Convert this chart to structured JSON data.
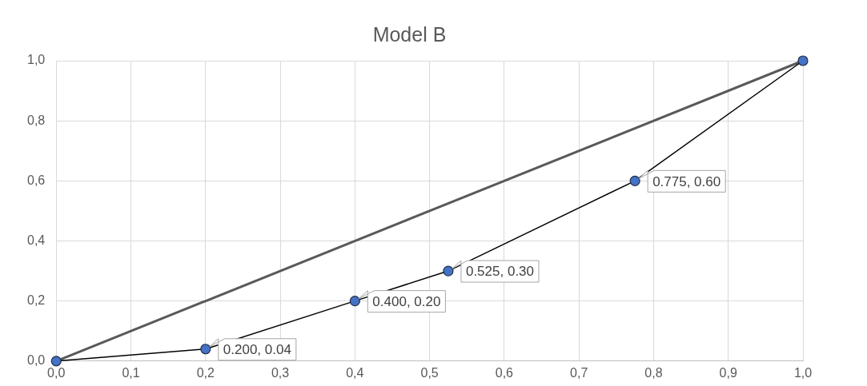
{
  "chart_data": {
    "type": "line",
    "title": "Model B",
    "xlim": [
      0,
      1
    ],
    "ylim": [
      0,
      1
    ],
    "xticks": [
      {
        "value": 0,
        "label": "0,0"
      },
      {
        "value": 0.1,
        "label": "0,1"
      },
      {
        "value": 0.2,
        "label": "0,2"
      },
      {
        "value": 0.3,
        "label": "0,3"
      },
      {
        "value": 0.4,
        "label": "0,4"
      },
      {
        "value": 0.5,
        "label": "0,5"
      },
      {
        "value": 0.6,
        "label": "0,6"
      },
      {
        "value": 0.7,
        "label": "0,7"
      },
      {
        "value": 0.8,
        "label": "0,8"
      },
      {
        "value": 0.9,
        "label": "0,9"
      },
      {
        "value": 1,
        "label": "1,0"
      }
    ],
    "yticks": [
      {
        "value": 0,
        "label": "0,0"
      },
      {
        "value": 0.2,
        "label": "0,2"
      },
      {
        "value": 0.4,
        "label": "0,4"
      },
      {
        "value": 0.6,
        "label": "0,6"
      },
      {
        "value": 0.8,
        "label": "0,8"
      },
      {
        "value": 1,
        "label": "1,0"
      }
    ],
    "grid": true,
    "legend": false,
    "series": [
      {
        "color": "#595959",
        "marker": "none",
        "x": [
          0,
          1
        ],
        "values": [
          0,
          1
        ]
      },
      {
        "color": "#000000",
        "marker": "none",
        "x": [
          0,
          0.2,
          0.4,
          0.525,
          0.775,
          1
        ],
        "values": [
          0,
          0.04,
          0.2,
          0.3,
          0.6,
          1
        ]
      },
      {
        "type": "scatter",
        "color": "#4472c4",
        "marker": "circle",
        "x": [
          0,
          0.2,
          0.4,
          0.525,
          0.775,
          1
        ],
        "values": [
          0,
          0.04,
          0.2,
          0.3,
          0.6,
          1
        ],
        "value_labels": [
          null,
          "0.200, 0.04",
          "0.400, 0.20",
          "0.525, 0.30",
          "0.775, 0.60",
          null
        ]
      }
    ]
  }
}
